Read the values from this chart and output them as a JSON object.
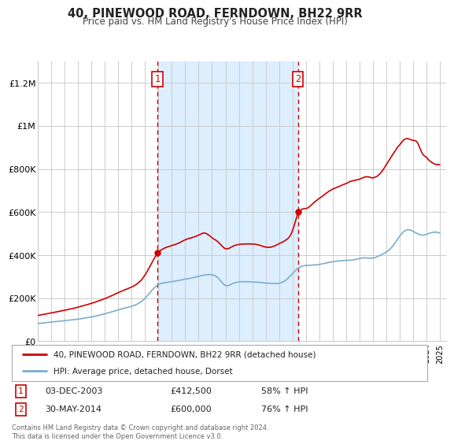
{
  "title": "40, PINEWOOD ROAD, FERNDOWN, BH22 9RR",
  "subtitle": "Price paid vs. HM Land Registry's House Price Index (HPI)",
  "footer": "Contains HM Land Registry data © Crown copyright and database right 2024.\nThis data is licensed under the Open Government Licence v3.0.",
  "legend_line1": "40, PINEWOOD ROAD, FERNDOWN, BH22 9RR (detached house)",
  "legend_line2": "HPI: Average price, detached house, Dorset",
  "sale1_date": "03-DEC-2003",
  "sale1_price": "£412,500",
  "sale1_hpi": "58% ↑ HPI",
  "sale1_x": 2003.917,
  "sale1_y": 412500,
  "sale2_date": "30-MAY-2014",
  "sale2_price": "£600,000",
  "sale2_hpi": "76% ↑ HPI",
  "sale2_x": 2014.416,
  "sale2_y": 600000,
  "red_color": "#cc0000",
  "blue_color": "#7aadcf",
  "shade_color": "#ddeeff",
  "grid_color": "#cccccc",
  "ylim": [
    0,
    1300000
  ],
  "xlim_left": 1995.0,
  "xlim_right": 2025.5,
  "yticks": [
    0,
    200000,
    400000,
    600000,
    800000,
    1000000,
    1200000
  ],
  "ytick_labels": [
    "£0",
    "£200K",
    "£400K",
    "£600K",
    "£800K",
    "£1M",
    "£1.2M"
  ]
}
